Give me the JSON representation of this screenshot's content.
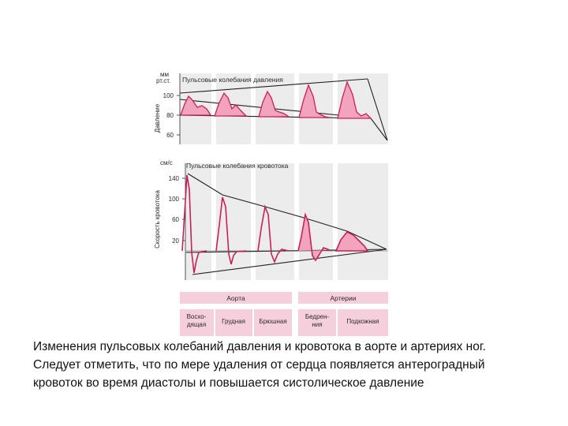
{
  "pressure_panel": {
    "unit_line1": "мм",
    "unit_line2": "рт.ст.",
    "title": "Пульсовые колебания давления",
    "axis_label": "Давление",
    "ticks": [
      "100",
      "80",
      "60"
    ]
  },
  "flow_panel": {
    "unit": "см/с",
    "title": "Пульсовые колебания кровотока",
    "axis_label": "Скорость кровотока",
    "ticks": [
      "140",
      "100",
      "60",
      "20"
    ]
  },
  "vessel_labels": {
    "aorta": "Аорта",
    "arteries": "Артерии",
    "ascending_line1": "Восхо-",
    "ascending_line2": "дящая",
    "thoracic": "Грудная",
    "abdominal": "Брюшная",
    "femoral_line1": "Бедрен-",
    "femoral_line2": "ния",
    "subcutaneous": "Подкожная"
  },
  "caption": {
    "line1": "Изменения пульсовых колебаний давления и кровотока в аорте и артериях ног.",
    "line2": "Следует отметить, что по мере удаления от сердца появляется антероградный",
    "line3": "кровоток во время диастолы и повышается систолическое давление"
  },
  "colors": {
    "waveform_stroke": "#c8205a",
    "waveform_fill": "#f2a4bd",
    "label_band": "#f6cfdc",
    "panel_bg": "#ececec"
  }
}
